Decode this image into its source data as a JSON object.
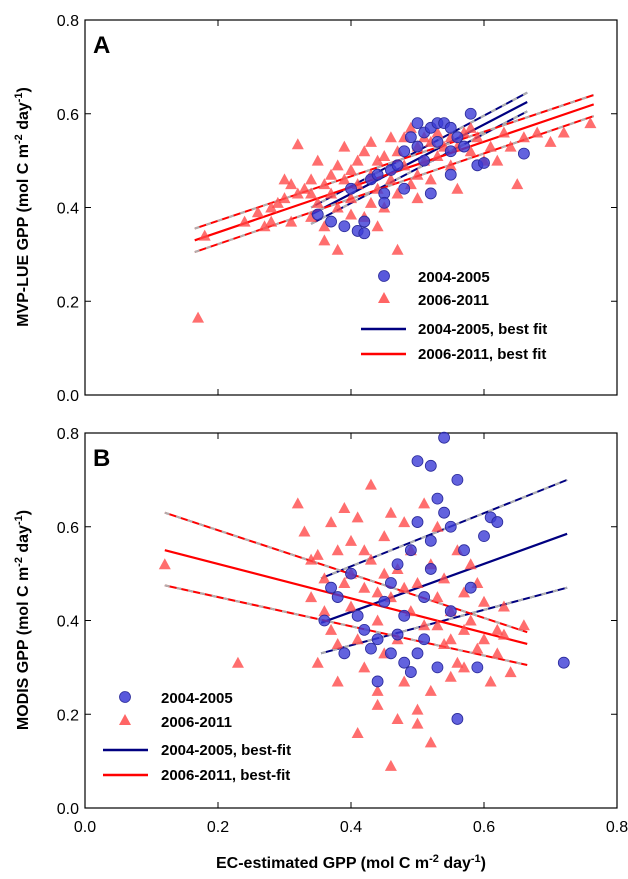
{
  "chart_data": [
    {
      "type": "scatter",
      "panel": "A",
      "ylabel": "MVP-LUE GPP (mol C m-2 day-1)",
      "ylabel_parts": {
        "main": "MVP-LUE GPP (mol C m",
        "sup1": "-2",
        "mid": " day",
        "sup2": "-1",
        "end": ")"
      },
      "xlim": [
        0,
        0.8
      ],
      "ylim": [
        0,
        0.8
      ],
      "xticks": [
        "0.0",
        "0.2",
        "0.4",
        "0.6",
        "0.8"
      ],
      "yticks": [
        "0.0",
        "0.2",
        "0.4",
        "0.6",
        "0.8"
      ],
      "legend_placement": "bottom-right",
      "colors": {
        "s1": "#3b3bd6",
        "s2": "#ff3b3b",
        "fit1": "#000080",
        "fit2": "#ff0000",
        "ci": "#b0b0b0"
      },
      "series": [
        {
          "name": "2004-2005",
          "marker": "circle",
          "points": [
            [
              0.35,
              0.385
            ],
            [
              0.37,
              0.37
            ],
            [
              0.39,
              0.36
            ],
            [
              0.4,
              0.44
            ],
            [
              0.41,
              0.35
            ],
            [
              0.42,
              0.37
            ],
            [
              0.43,
              0.46
            ],
            [
              0.44,
              0.47
            ],
            [
              0.45,
              0.43
            ],
            [
              0.46,
              0.48
            ],
            [
              0.47,
              0.49
            ],
            [
              0.48,
              0.52
            ],
            [
              0.49,
              0.55
            ],
            [
              0.5,
              0.58
            ],
            [
              0.5,
              0.53
            ],
            [
              0.51,
              0.56
            ],
            [
              0.52,
              0.57
            ],
            [
              0.53,
              0.58
            ],
            [
              0.53,
              0.54
            ],
            [
              0.54,
              0.58
            ],
            [
              0.55,
              0.57
            ],
            [
              0.55,
              0.52
            ],
            [
              0.56,
              0.55
            ],
            [
              0.57,
              0.53
            ],
            [
              0.58,
              0.6
            ],
            [
              0.59,
              0.49
            ],
            [
              0.6,
              0.495
            ],
            [
              0.52,
              0.43
            ],
            [
              0.45,
              0.41
            ],
            [
              0.48,
              0.44
            ],
            [
              0.66,
              0.515
            ],
            [
              0.42,
              0.345
            ],
            [
              0.51,
              0.5
            ],
            [
              0.55,
              0.47
            ]
          ]
        },
        {
          "name": "2006-2011",
          "marker": "triangle",
          "points": [
            [
              0.17,
              0.165
            ],
            [
              0.18,
              0.34
            ],
            [
              0.24,
              0.37
            ],
            [
              0.26,
              0.39
            ],
            [
              0.27,
              0.36
            ],
            [
              0.28,
              0.4
            ],
            [
              0.29,
              0.41
            ],
            [
              0.3,
              0.42
            ],
            [
              0.31,
              0.37
            ],
            [
              0.32,
              0.43
            ],
            [
              0.32,
              0.535
            ],
            [
              0.33,
              0.44
            ],
            [
              0.34,
              0.38
            ],
            [
              0.34,
              0.46
            ],
            [
              0.35,
              0.41
            ],
            [
              0.35,
              0.5
            ],
            [
              0.36,
              0.45
            ],
            [
              0.36,
              0.33
            ],
            [
              0.37,
              0.47
            ],
            [
              0.37,
              0.43
            ],
            [
              0.38,
              0.49
            ],
            [
              0.38,
              0.4
            ],
            [
              0.38,
              0.31
            ],
            [
              0.39,
              0.46
            ],
            [
              0.39,
              0.53
            ],
            [
              0.4,
              0.48
            ],
            [
              0.4,
              0.42
            ],
            [
              0.41,
              0.5
            ],
            [
              0.41,
              0.45
            ],
            [
              0.42,
              0.52
            ],
            [
              0.42,
              0.38
            ],
            [
              0.43,
              0.47
            ],
            [
              0.43,
              0.54
            ],
            [
              0.44,
              0.44
            ],
            [
              0.44,
              0.5
            ],
            [
              0.45,
              0.51
            ],
            [
              0.45,
              0.4
            ],
            [
              0.46,
              0.55
            ],
            [
              0.46,
              0.46
            ],
            [
              0.47,
              0.52
            ],
            [
              0.47,
              0.31
            ],
            [
              0.48,
              0.49
            ],
            [
              0.48,
              0.55
            ],
            [
              0.49,
              0.57
            ],
            [
              0.49,
              0.45
            ],
            [
              0.5,
              0.53
            ],
            [
              0.5,
              0.47
            ],
            [
              0.51,
              0.55
            ],
            [
              0.51,
              0.5
            ],
            [
              0.52,
              0.54
            ],
            [
              0.52,
              0.46
            ],
            [
              0.53,
              0.56
            ],
            [
              0.53,
              0.51
            ],
            [
              0.54,
              0.53
            ],
            [
              0.55,
              0.55
            ],
            [
              0.55,
              0.49
            ],
            [
              0.56,
              0.53
            ],
            [
              0.57,
              0.56
            ],
            [
              0.58,
              0.52
            ],
            [
              0.58,
              0.57
            ],
            [
              0.59,
              0.55
            ],
            [
              0.6,
              0.5
            ],
            [
              0.61,
              0.53
            ],
            [
              0.62,
              0.5
            ],
            [
              0.63,
              0.56
            ],
            [
              0.64,
              0.53
            ],
            [
              0.65,
              0.45
            ],
            [
              0.66,
              0.55
            ],
            [
              0.68,
              0.56
            ],
            [
              0.7,
              0.54
            ],
            [
              0.72,
              0.56
            ],
            [
              0.76,
              0.58
            ],
            [
              0.3,
              0.46
            ],
            [
              0.44,
              0.36
            ],
            [
              0.4,
              0.385
            ],
            [
              0.36,
              0.36
            ],
            [
              0.34,
              0.43
            ],
            [
              0.31,
              0.45
            ],
            [
              0.43,
              0.41
            ],
            [
              0.47,
              0.43
            ],
            [
              0.5,
              0.42
            ],
            [
              0.56,
              0.44
            ],
            [
              0.28,
              0.37
            ]
          ]
        }
      ],
      "fits": [
        {
          "name": "2004-2005, best fit",
          "x": [
            0.34,
            0.665
          ],
          "y": [
            0.385,
            0.625
          ],
          "ci_upper": [
            0.4,
            0.645
          ],
          "ci_lower": [
            0.365,
            0.605
          ]
        },
        {
          "name": "2006-2011, best fit",
          "x": [
            0.165,
            0.765
          ],
          "y": [
            0.33,
            0.62
          ],
          "ci_upper": [
            0.355,
            0.64
          ],
          "ci_lower": [
            0.305,
            0.595
          ]
        }
      ]
    },
    {
      "type": "scatter",
      "panel": "B",
      "ylabel": "MODIS GPP (mol C m-2 day-1)",
      "ylabel_parts": {
        "main": "MODIS GPP (mol C m",
        "sup1": "-2",
        "mid": " day",
        "sup2": "-1",
        "end": ")"
      },
      "xlabel": "EC-estimated GPP (mol C m-2 day-1)",
      "xlabel_parts": {
        "main": "EC-estimated GPP (mol C m",
        "sup1": "-2",
        "mid": " day",
        "sup2": "-1",
        "end": ")"
      },
      "xlim": [
        0,
        0.8
      ],
      "ylim": [
        0,
        0.8
      ],
      "xticks": [
        "0.0",
        "0.2",
        "0.4",
        "0.6",
        "0.8"
      ],
      "yticks": [
        "0.0",
        "0.2",
        "0.4",
        "0.6",
        "0.8"
      ],
      "legend_placement": "bottom-left",
      "series": [
        {
          "name": "2004-2005",
          "marker": "circle",
          "points": [
            [
              0.36,
              0.4
            ],
            [
              0.37,
              0.47
            ],
            [
              0.38,
              0.45
            ],
            [
              0.39,
              0.33
            ],
            [
              0.4,
              0.5
            ],
            [
              0.41,
              0.41
            ],
            [
              0.42,
              0.38
            ],
            [
              0.43,
              0.34
            ],
            [
              0.44,
              0.36
            ],
            [
              0.44,
              0.27
            ],
            [
              0.45,
              0.44
            ],
            [
              0.46,
              0.48
            ],
            [
              0.47,
              0.37
            ],
            [
              0.47,
              0.52
            ],
            [
              0.48,
              0.31
            ],
            [
              0.48,
              0.41
            ],
            [
              0.49,
              0.29
            ],
            [
              0.49,
              0.55
            ],
            [
              0.5,
              0.74
            ],
            [
              0.5,
              0.61
            ],
            [
              0.51,
              0.45
            ],
            [
              0.51,
              0.36
            ],
            [
              0.52,
              0.73
            ],
            [
              0.52,
              0.57
            ],
            [
              0.53,
              0.66
            ],
            [
              0.53,
              0.3
            ],
            [
              0.54,
              0.79
            ],
            [
              0.54,
              0.63
            ],
            [
              0.55,
              0.6
            ],
            [
              0.55,
              0.42
            ],
            [
              0.56,
              0.19
            ],
            [
              0.56,
              0.7
            ],
            [
              0.57,
              0.55
            ],
            [
              0.58,
              0.47
            ],
            [
              0.59,
              0.3
            ],
            [
              0.6,
              0.58
            ],
            [
              0.61,
              0.62
            ],
            [
              0.62,
              0.61
            ],
            [
              0.72,
              0.31
            ],
            [
              0.5,
              0.33
            ],
            [
              0.52,
              0.51
            ],
            [
              0.46,
              0.33
            ]
          ]
        },
        {
          "name": "2006-2011",
          "marker": "triangle",
          "points": [
            [
              0.12,
              0.52
            ],
            [
              0.23,
              0.31
            ],
            [
              0.32,
              0.65
            ],
            [
              0.33,
              0.59
            ],
            [
              0.34,
              0.45
            ],
            [
              0.35,
              0.54
            ],
            [
              0.36,
              0.49
            ],
            [
              0.37,
              0.61
            ],
            [
              0.37,
              0.38
            ],
            [
              0.38,
              0.55
            ],
            [
              0.38,
              0.27
            ],
            [
              0.39,
              0.48
            ],
            [
              0.39,
              0.64
            ],
            [
              0.4,
              0.43
            ],
            [
              0.4,
              0.57
            ],
            [
              0.41,
              0.36
            ],
            [
              0.41,
              0.62
            ],
            [
              0.42,
              0.47
            ],
            [
              0.42,
              0.3
            ],
            [
              0.43,
              0.53
            ],
            [
              0.43,
              0.69
            ],
            [
              0.44,
              0.4
            ],
            [
              0.44,
              0.22
            ],
            [
              0.45,
              0.58
            ],
            [
              0.45,
              0.33
            ],
            [
              0.46,
              0.45
            ],
            [
              0.46,
              0.09
            ],
            [
              0.47,
              0.51
            ],
            [
              0.47,
              0.36
            ],
            [
              0.48,
              0.61
            ],
            [
              0.48,
              0.27
            ],
            [
              0.49,
              0.42
            ],
            [
              0.49,
              0.55
            ],
            [
              0.5,
              0.18
            ],
            [
              0.5,
              0.48
            ],
            [
              0.51,
              0.65
            ],
            [
              0.51,
              0.39
            ],
            [
              0.52,
              0.52
            ],
            [
              0.52,
              0.25
            ],
            [
              0.53,
              0.45
            ],
            [
              0.53,
              0.6
            ],
            [
              0.54,
              0.35
            ],
            [
              0.54,
              0.49
            ],
            [
              0.55,
              0.28
            ],
            [
              0.55,
              0.42
            ],
            [
              0.56,
              0.55
            ],
            [
              0.56,
              0.31
            ],
            [
              0.57,
              0.46
            ],
            [
              0.57,
              0.38
            ],
            [
              0.58,
              0.4
            ],
            [
              0.58,
              0.52
            ],
            [
              0.59,
              0.34
            ],
            [
              0.6,
              0.44
            ],
            [
              0.61,
              0.27
            ],
            [
              0.62,
              0.38
            ],
            [
              0.63,
              0.43
            ],
            [
              0.64,
              0.29
            ],
            [
              0.66,
              0.39
            ],
            [
              0.41,
              0.16
            ],
            [
              0.44,
              0.25
            ],
            [
              0.47,
              0.19
            ],
            [
              0.5,
              0.21
            ],
            [
              0.52,
              0.14
            ],
            [
              0.35,
              0.31
            ],
            [
              0.34,
              0.53
            ],
            [
              0.38,
              0.35
            ],
            [
              0.36,
              0.42
            ],
            [
              0.4,
              0.5
            ],
            [
              0.42,
              0.55
            ],
            [
              0.45,
              0.5
            ],
            [
              0.48,
              0.47
            ],
            [
              0.53,
              0.39
            ],
            [
              0.55,
              0.36
            ],
            [
              0.57,
              0.3
            ],
            [
              0.6,
              0.36
            ],
            [
              0.62,
              0.33
            ],
            [
              0.63,
              0.37
            ],
            [
              0.59,
              0.48
            ],
            [
              0.44,
              0.46
            ],
            [
              0.46,
              0.63
            ]
          ]
        }
      ],
      "fits": [
        {
          "name": "2004-2005, best-fit",
          "x": [
            0.355,
            0.725
          ],
          "y": [
            0.395,
            0.585
          ],
          "ci_upper": [
            0.49,
            0.7
          ],
          "ci_lower": [
            0.33,
            0.47
          ]
        },
        {
          "name": "2006-2011, best-fit",
          "x": [
            0.12,
            0.665
          ],
          "y": [
            0.55,
            0.35
          ],
          "ci_upper": [
            0.63,
            0.375
          ],
          "ci_lower": [
            0.475,
            0.305
          ]
        }
      ]
    }
  ]
}
